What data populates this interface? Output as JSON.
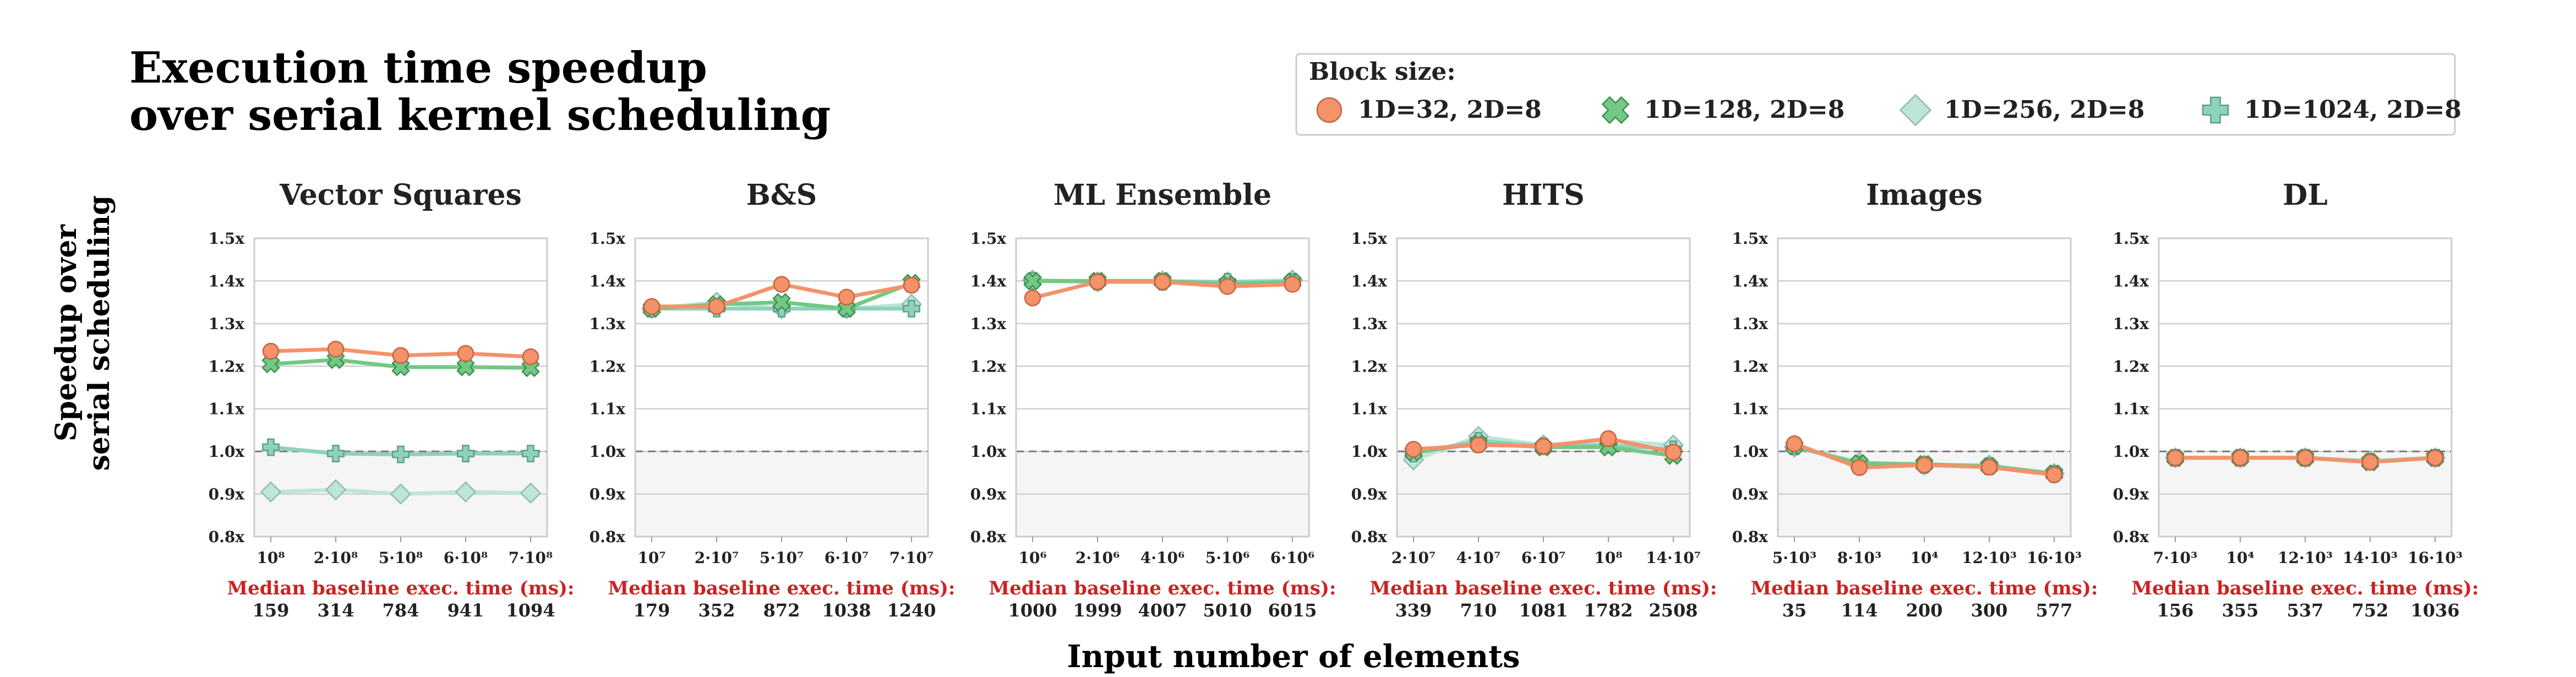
{
  "title_line1": "Execution time speedup",
  "title_line2": "over serial kernel scheduling",
  "ylabel_line1": "Speedup over",
  "ylabel_line2": "serial scheduling",
  "xlabel": "Input number of elements",
  "median_label": "Median baseline exec. time (ms):",
  "legend": {
    "title": "Block size:",
    "entries": [
      "1D=32, 2D=8",
      "1D=128, 2D=8",
      "1D=256, 2D=8",
      "1D=1024, 2D=8"
    ]
  },
  "colors": {
    "s32": "#f4926a",
    "s128": "#72c884",
    "s256": "#bde5d8",
    "s1024": "#8ed1bc",
    "baseline": "#777777",
    "median_text": "#cc2222"
  },
  "markers": [
    "circle",
    "x-cross",
    "diamond",
    "plus-cross"
  ],
  "chart_data": {
    "type": "line",
    "ylim": [
      0.8,
      1.5
    ],
    "yticks": [
      "0.8x",
      "0.9x",
      "1.0x",
      "1.1x",
      "1.2x",
      "1.3x",
      "1.4x",
      "1.5x"
    ],
    "yticks_values": [
      0.8,
      0.9,
      1.0,
      1.1,
      1.2,
      1.3,
      1.4,
      1.5
    ],
    "baseline": 1.0,
    "grid": true,
    "panels": [
      {
        "title": "Vector Squares",
        "xticks": [
          "10⁸",
          "2·10⁸",
          "5·10⁸",
          "6·10⁸",
          "7·10⁸"
        ],
        "median_times": [
          "159",
          "314",
          "784",
          "941",
          "1094"
        ],
        "series": [
          {
            "name": "1D=32, 2D=8",
            "values": [
              1.235,
              1.24,
              1.225,
              1.23,
              1.222
            ]
          },
          {
            "name": "1D=128, 2D=8",
            "values": [
              1.205,
              1.215,
              1.198,
              1.198,
              1.196
            ]
          },
          {
            "name": "1D=256, 2D=8",
            "values": [
              0.905,
              0.91,
              0.9,
              0.905,
              0.902
            ]
          },
          {
            "name": "1D=1024, 2D=8",
            "values": [
              1.01,
              0.995,
              0.993,
              0.995,
              0.995
            ]
          }
        ]
      },
      {
        "title": "B&S",
        "xticks": [
          "10⁷",
          "2·10⁷",
          "5·10⁷",
          "6·10⁷",
          "7·10⁷"
        ],
        "median_times": [
          "179",
          "352",
          "872",
          "1038",
          "1240"
        ],
        "series": [
          {
            "name": "1D=32, 2D=8",
            "values": [
              1.34,
              1.34,
              1.392,
              1.362,
              1.39
            ]
          },
          {
            "name": "1D=128, 2D=8",
            "values": [
              1.335,
              1.345,
              1.35,
              1.335,
              1.395
            ]
          },
          {
            "name": "1D=256, 2D=8",
            "values": [
              1.335,
              1.35,
              1.335,
              1.335,
              1.345
            ]
          },
          {
            "name": "1D=1024, 2D=8",
            "values": [
              1.335,
              1.335,
              1.335,
              1.335,
              1.335
            ]
          }
        ]
      },
      {
        "title": "ML Ensemble",
        "xticks": [
          "10⁶",
          "2·10⁶",
          "4·10⁶",
          "5·10⁶",
          "6·10⁶"
        ],
        "median_times": [
          "1000",
          "1999",
          "4007",
          "5010",
          "6015"
        ],
        "series": [
          {
            "name": "1D=32, 2D=8",
            "values": [
              1.36,
              1.398,
              1.398,
              1.387,
              1.392
            ]
          },
          {
            "name": "1D=128, 2D=8",
            "values": [
              1.4,
              1.4,
              1.4,
              1.392,
              1.398
            ]
          },
          {
            "name": "1D=256, 2D=8",
            "values": [
              1.402,
              1.398,
              1.4,
              1.398,
              1.402
            ]
          },
          {
            "name": "1D=1024, 2D=8",
            "values": [
              1.4,
              1.398,
              1.398,
              1.398,
              1.398
            ]
          }
        ]
      },
      {
        "title": "HITS",
        "xticks": [
          "2·10⁷",
          "4·10⁷",
          "6·10⁷",
          "10⁸",
          "14·10⁷"
        ],
        "median_times": [
          "339",
          "710",
          "1081",
          "1782",
          "2508"
        ],
        "series": [
          {
            "name": "1D=32, 2D=8",
            "values": [
              1.005,
              1.015,
              1.012,
              1.03,
              0.998
            ]
          },
          {
            "name": "1D=128, 2D=8",
            "values": [
              0.998,
              1.018,
              1.01,
              1.01,
              0.99
            ]
          },
          {
            "name": "1D=256, 2D=8",
            "values": [
              0.98,
              1.035,
              1.015,
              1.025,
              1.015
            ]
          },
          {
            "name": "1D=1024, 2D=8",
            "values": [
              0.995,
              1.025,
              1.012,
              1.015,
              1.005
            ]
          }
        ]
      },
      {
        "title": "Images",
        "xticks": [
          "5·10³",
          "8·10³",
          "10⁴",
          "12·10³",
          "16·10³"
        ],
        "median_times": [
          "35",
          "114",
          "200",
          "300",
          "577"
        ],
        "series": [
          {
            "name": "1D=32, 2D=8",
            "values": [
              1.018,
              0.962,
              0.968,
              0.963,
              0.945
            ]
          },
          {
            "name": "1D=128, 2D=8",
            "values": [
              1.012,
              0.972,
              0.97,
              0.965,
              0.948
            ]
          },
          {
            "name": "1D=256, 2D=8",
            "values": [
              1.01,
              0.975,
              0.968,
              0.968,
              0.948
            ]
          },
          {
            "name": "1D=1024, 2D=8",
            "values": [
              1.012,
              0.97,
              0.968,
              0.966,
              0.947
            ]
          }
        ]
      },
      {
        "title": "DL",
        "xticks": [
          "7·10³",
          "10⁴",
          "12·10³",
          "14·10³",
          "16·10³"
        ],
        "median_times": [
          "156",
          "355",
          "537",
          "752",
          "1036"
        ],
        "series": [
          {
            "name": "1D=32, 2D=8",
            "values": [
              0.985,
              0.985,
              0.985,
              0.975,
              0.985
            ]
          },
          {
            "name": "1D=128, 2D=8",
            "values": [
              0.985,
              0.985,
              0.985,
              0.975,
              0.985
            ]
          },
          {
            "name": "1D=256, 2D=8",
            "values": [
              0.985,
              0.985,
              0.985,
              0.978,
              0.985
            ]
          },
          {
            "name": "1D=1024, 2D=8",
            "values": [
              0.985,
              0.985,
              0.985,
              0.976,
              0.985
            ]
          }
        ]
      }
    ]
  }
}
